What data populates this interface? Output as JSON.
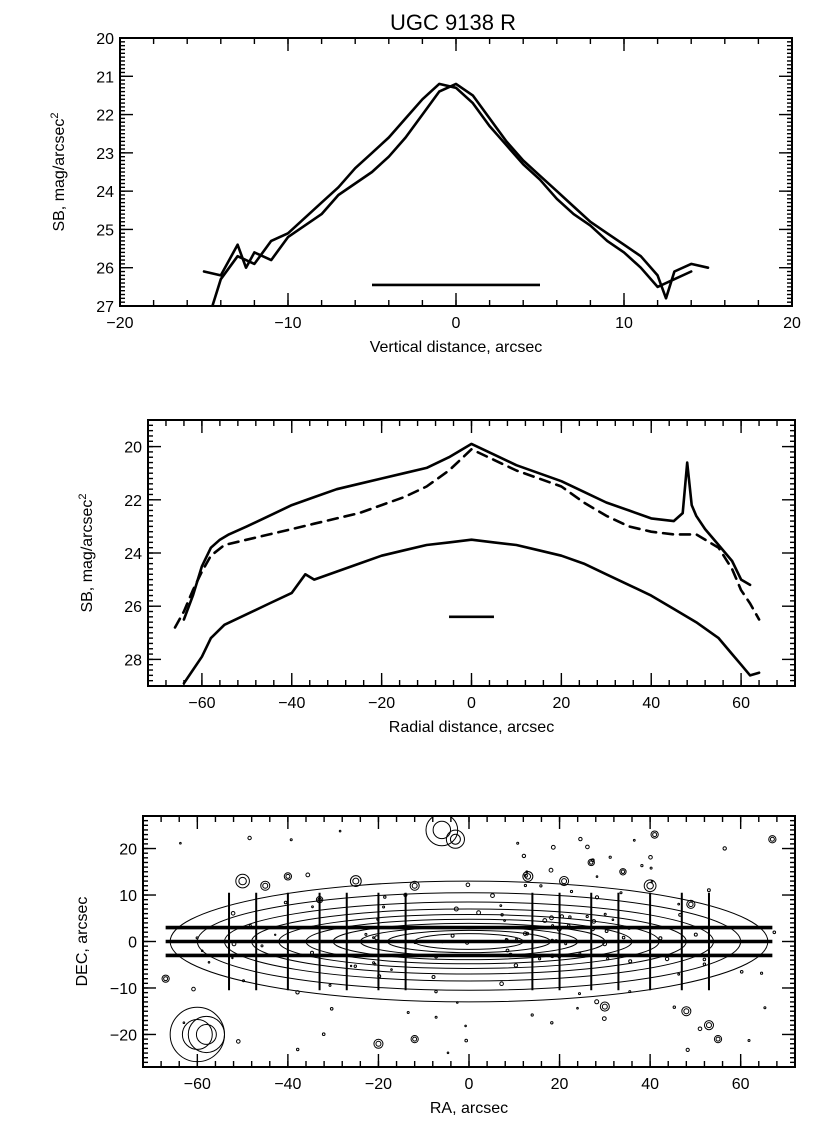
{
  "title": "UGC 9138 R",
  "chart_data": [
    {
      "type": "line",
      "xlabel": "Vertical distance, arcsec",
      "ylabel": "SB, mag/arcsec",
      "ylabel_superscript": "2",
      "xlim": [
        -20,
        20
      ],
      "ylim": [
        27,
        20
      ],
      "y_inverted": true,
      "xticks": [
        -20,
        -10,
        0,
        10,
        20
      ],
      "yticks": [
        20,
        21,
        22,
        23,
        24,
        25,
        26,
        27
      ],
      "grid": false,
      "series": [
        {
          "style": "solid",
          "x": [
            -15.0,
            -14.0,
            -13.0,
            -12.5,
            -12.0,
            -11.0,
            -10.0,
            -9.0,
            -8.0,
            -7.0,
            -6.0,
            -5.0,
            -4.0,
            -3.0,
            -2.0,
            -1.0,
            0.0,
            1.0,
            2.0,
            3.0,
            4.0,
            5.0,
            6.0,
            7.0,
            8.0,
            9.0,
            10.0,
            11.0,
            12.0,
            12.5,
            13.0,
            14.0,
            15.0
          ],
          "y": [
            26.1,
            26.2,
            25.4,
            26.0,
            25.6,
            25.8,
            25.2,
            24.9,
            24.6,
            24.1,
            23.8,
            23.5,
            23.1,
            22.6,
            22.0,
            21.4,
            21.2,
            21.5,
            22.1,
            22.7,
            23.2,
            23.6,
            24.0,
            24.4,
            24.8,
            25.1,
            25.4,
            25.7,
            26.2,
            26.8,
            26.1,
            25.9,
            26.0
          ]
        },
        {
          "style": "solid",
          "x": [
            -14.5,
            -14.0,
            -13.0,
            -12.0,
            -11.0,
            -10.0,
            -9.0,
            -8.0,
            -7.0,
            -6.0,
            -5.0,
            -4.0,
            -3.0,
            -2.0,
            -1.0,
            0.0,
            1.0,
            2.0,
            3.0,
            4.0,
            5.0,
            6.0,
            7.0,
            8.0,
            9.0,
            10.0,
            11.0,
            12.0,
            13.0,
            14.0
          ],
          "y": [
            27.0,
            26.3,
            25.7,
            25.9,
            25.3,
            25.1,
            24.7,
            24.3,
            23.9,
            23.4,
            23.0,
            22.6,
            22.1,
            21.6,
            21.2,
            21.3,
            21.7,
            22.3,
            22.8,
            23.3,
            23.7,
            24.2,
            24.6,
            24.9,
            25.3,
            25.6,
            26.0,
            26.5,
            26.3,
            26.1
          ]
        }
      ],
      "scale_bar": {
        "x": [
          -5,
          5
        ],
        "y": 26.45
      }
    },
    {
      "type": "line",
      "xlabel": "Radial distance, arcsec",
      "ylabel": "SB, mag/arcsec",
      "ylabel_superscript": "2",
      "xlim": [
        -72,
        72
      ],
      "ylim": [
        29,
        19
      ],
      "y_inverted": true,
      "xticks": [
        -60,
        -40,
        -20,
        0,
        20,
        40,
        60
      ],
      "yticks": [
        20,
        22,
        24,
        26,
        28
      ],
      "grid": false,
      "series": [
        {
          "style": "solid",
          "x": [
            -64.0,
            -62.0,
            -60.0,
            -58.0,
            -56.0,
            -54.0,
            -50.0,
            -45.0,
            -40.0,
            -35.0,
            -30.0,
            -25.0,
            -20.0,
            -15.0,
            -10.0,
            -5.0,
            0.0,
            5.0,
            10.0,
            15.0,
            20.0,
            25.0,
            30.0,
            35.0,
            40.0,
            45.0,
            47.0,
            48.0,
            49.0,
            50.0,
            52.0,
            55.0,
            58.0,
            60.0,
            62.0
          ],
          "y": [
            26.5,
            25.6,
            24.5,
            23.8,
            23.5,
            23.3,
            23.0,
            22.6,
            22.2,
            21.9,
            21.6,
            21.4,
            21.2,
            21.0,
            20.8,
            20.4,
            19.9,
            20.3,
            20.7,
            21.0,
            21.3,
            21.7,
            22.1,
            22.4,
            22.7,
            22.8,
            22.5,
            20.6,
            22.2,
            22.6,
            23.1,
            23.7,
            24.3,
            25.0,
            25.2
          ]
        },
        {
          "style": "dashed",
          "x": [
            -66.0,
            -64.0,
            -62.0,
            -60.0,
            -58.0,
            -55.0,
            -50.0,
            -45.0,
            -40.0,
            -35.0,
            -30.0,
            -25.0,
            -20.0,
            -15.0,
            -10.0,
            -5.0,
            0.0,
            5.0,
            10.0,
            15.0,
            20.0,
            25.0,
            30.0,
            35.0,
            40.0,
            45.0,
            50.0,
            55.0,
            58.0,
            60.0,
            62.0,
            64.0
          ],
          "y": [
            26.8,
            26.2,
            25.4,
            24.7,
            24.1,
            23.7,
            23.5,
            23.3,
            23.1,
            22.9,
            22.7,
            22.5,
            22.2,
            21.9,
            21.5,
            20.9,
            20.1,
            20.5,
            20.9,
            21.2,
            21.5,
            22.1,
            22.6,
            23.0,
            23.2,
            23.3,
            23.3,
            23.8,
            24.6,
            25.4,
            25.9,
            26.5
          ]
        },
        {
          "style": "solid",
          "x": [
            -64.0,
            -62.0,
            -60.0,
            -58.0,
            -55.0,
            -50.0,
            -45.0,
            -40.0,
            -37.0,
            -35.0,
            -30.0,
            -25.0,
            -20.0,
            -15.0,
            -10.0,
            -5.0,
            0.0,
            5.0,
            10.0,
            15.0,
            20.0,
            25.0,
            30.0,
            35.0,
            40.0,
            45.0,
            50.0,
            55.0,
            58.0,
            60.0,
            62.0,
            64.0
          ],
          "y": [
            28.9,
            28.4,
            27.9,
            27.2,
            26.7,
            26.3,
            25.9,
            25.5,
            24.8,
            25.0,
            24.7,
            24.4,
            24.1,
            23.9,
            23.7,
            23.6,
            23.5,
            23.6,
            23.7,
            23.9,
            24.1,
            24.4,
            24.8,
            25.2,
            25.6,
            26.1,
            26.6,
            27.2,
            27.8,
            28.2,
            28.6,
            28.5
          ]
        }
      ],
      "scale_bar": {
        "x": [
          -5,
          5
        ],
        "y": 26.4
      }
    },
    {
      "type": "contour",
      "xlabel": "RA, arcsec",
      "ylabel": "DEC, arcsec",
      "xlim": [
        -72,
        72
      ],
      "ylim": [
        -27,
        27
      ],
      "xticks": [
        -60,
        -40,
        -20,
        0,
        20,
        40,
        60
      ],
      "yticks": [
        -20,
        -10,
        0,
        10,
        20
      ],
      "grid": false,
      "horizontal_cuts_y": [
        3,
        0,
        -3
      ],
      "horizontal_cuts_x": [
        -67,
        67
      ],
      "vertical_cuts_x": [
        -53,
        -47,
        -40,
        -33,
        -27,
        -20,
        -14,
        14,
        20,
        27,
        33,
        40,
        47,
        53
      ],
      "vertical_cuts_half_length": 10.5
    }
  ]
}
